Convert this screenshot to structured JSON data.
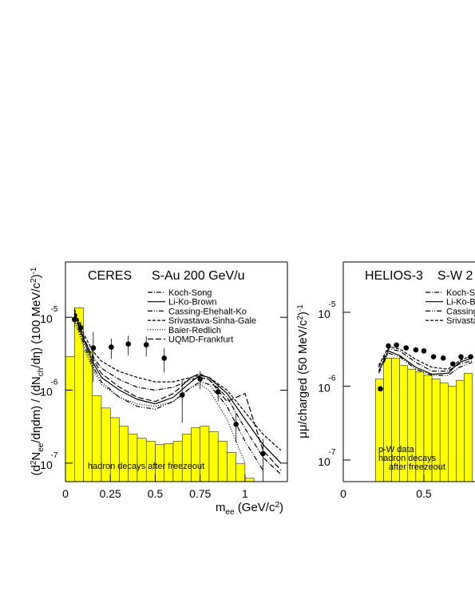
{
  "chart_data": [
    {
      "type": "line",
      "log_y": true,
      "title": "CERES",
      "subtitle": "S-Au 200 GeV/u",
      "xlabel": [
        {
          "text": "m",
          "shift": "normal"
        },
        {
          "text": "ee",
          "shift": "sub"
        },
        {
          "text": " (GeV/c",
          "shift": "normal"
        },
        {
          "text": "2",
          "shift": "sup"
        },
        {
          "text": ")",
          "shift": "normal"
        }
      ],
      "ylabel": [
        {
          "text": "(d",
          "shift": "normal"
        },
        {
          "text": "2",
          "shift": "sup"
        },
        {
          "text": "N",
          "shift": "normal"
        },
        {
          "text": "ee",
          "shift": "sub"
        },
        {
          "text": "/dηdm) / (dN",
          "shift": "normal"
        },
        {
          "text": "ch",
          "shift": "sub"
        },
        {
          "text": "/dη) (100 MeV/c",
          "shift": "normal"
        },
        {
          "text": "2",
          "shift": "sup"
        },
        {
          "text": ")",
          "shift": "normal"
        },
        {
          "text": "-1",
          "shift": "sup"
        }
      ],
      "xlim": [
        0,
        1.236
      ],
      "ylim": [
        5.58e-08,
        5.73e-05
      ],
      "xticks": [
        0,
        0.25,
        0.5,
        0.75,
        1
      ],
      "yticks": [
        {
          "value": 1e-05,
          "label": "10",
          "exponent": "-5"
        },
        {
          "value": 1e-06,
          "label": "10",
          "exponent": "-6"
        },
        {
          "value": 1e-07,
          "label": "10",
          "exponent": "-7"
        }
      ],
      "annotations": [
        "hadron decays after freezeout"
      ],
      "histogram": {
        "color": "#ffff00",
        "bins": [
          0,
          0.05,
          0.1,
          0.15,
          0.2,
          0.25,
          0.3,
          0.35,
          0.4,
          0.45,
          0.5,
          0.55,
          0.6,
          0.65,
          0.7,
          0.75,
          0.8,
          0.85,
          0.9,
          0.95,
          1.0,
          1.05,
          1.1
        ],
        "values": [
          2.9e-06,
          1.35e-05,
          3.4e-06,
          8.4e-07,
          5.7e-07,
          4.2e-07,
          3.2e-07,
          2.5e-07,
          2.2e-07,
          2e-07,
          1.8e-07,
          1.85e-07,
          2e-07,
          2.5e-07,
          3.05e-07,
          3.2e-07,
          2.7e-07,
          2e-07,
          1.4e-07,
          9.8e-08,
          6.2e-08,
          5e-08
        ]
      },
      "points": {
        "color": "#000000",
        "x": [
          0.05,
          0.085,
          0.155,
          0.255,
          0.35,
          0.45,
          0.55,
          0.65,
          0.75,
          0.85,
          0.95,
          1.1
        ],
        "values": [
          9.3e-06,
          7.2e-06,
          3.8e-06,
          3.9e-06,
          4.3e-06,
          4.2e-06,
          2.75e-06,
          8.6e-07,
          1.43e-06,
          9.5e-07,
          3.4e-07,
          1.35e-07
        ],
        "errors": [
          2e-06,
          1.5e-06,
          2.5e-06,
          1.2e-06,
          1.3e-06,
          1.3e-06,
          1e-06,
          5e-07,
          4e-07,
          2.5e-07,
          1.5e-07,
          8e-08
        ]
      },
      "curve_x": [
        0.05,
        0.1,
        0.15,
        0.2,
        0.3,
        0.4,
        0.5,
        0.6,
        0.7,
        0.75,
        0.8,
        0.9,
        1.0,
        1.1,
        1.2
      ],
      "series": [
        {
          "name": "Koch-Song",
          "color": "#000000",
          "dash": "6,2,1,2",
          "values": [
            1.1e-05,
            5e-06,
            3e-06,
            2e-06,
            1.4e-06,
            1.1e-06,
            1e-06,
            1.1e-06,
            1.4e-06,
            1.5e-06,
            1.4e-06,
            8e-07,
            3e-07,
            1.2e-07,
            7e-08
          ]
        },
        {
          "name": "Li-Ko-Brown",
          "color": "#000000",
          "dash": "none",
          "values": [
            1.2e-05,
            5e-06,
            2.5e-06,
            1.5e-06,
            1e-06,
            7.5e-07,
            6.5e-07,
            8e-07,
            1.3e-06,
            1.6e-06,
            1.5e-06,
            9e-07,
            4e-07,
            1.8e-07,
            1e-07
          ]
        },
        {
          "name": "Cassing-Ehehalt-Ko",
          "color": "#000000",
          "dash": "6,2,1,2,1,2",
          "values": [
            1e-05,
            4.5e-06,
            2.2e-06,
            1.3e-06,
            8e-07,
            6e-07,
            5.5e-07,
            7e-07,
            1.1e-06,
            1.3e-06,
            1.2e-06,
            6e-07,
            2e-07,
            8e-08,
            null
          ]
        },
        {
          "name": "Srivastava-Sinha-Gale",
          "color": "#000000",
          "dash": "4,2",
          "values": [
            1.3e-05,
            6e-06,
            3.5e-06,
            2.5e-06,
            1.8e-06,
            1.5e-06,
            1.3e-06,
            1.3e-06,
            1.5e-06,
            1.6e-06,
            1.5e-06,
            1e-06,
            5e-07,
            2.5e-07,
            1.5e-07
          ]
        },
        {
          "name": "Baier-Redlich",
          "color": "#000000",
          "dash": "1,2",
          "values": [
            9e-06,
            4e-06,
            2e-06,
            1.2e-06,
            8e-07,
            6.5e-07,
            6e-07,
            7e-07,
            1.1e-06,
            1.2e-06,
            1e-06,
            4e-07,
            1e-07,
            null,
            null
          ]
        },
        {
          "name": "UQMD-Frankfurt",
          "color": "#000000",
          "dash": "7,3",
          "values": [
            1.2e-05,
            5.5e-06,
            2.8e-06,
            1.7e-06,
            1.1e-06,
            8e-07,
            7e-07,
            9e-07,
            1.5e-06,
            1.7e-06,
            1.4e-06,
            7e-07,
            9e-07,
            1.5e-07,
            8e-08
          ]
        }
      ]
    },
    {
      "type": "line",
      "log_y": true,
      "title": "HELIOS-3",
      "subtitle": "S-W 2",
      "ylabel": [
        {
          "text": "μμ/charged  (50 MeV/c",
          "shift": "normal"
        },
        {
          "text": "2",
          "shift": "sup"
        },
        {
          "text": ")",
          "shift": "normal"
        },
        {
          "text": "-1",
          "shift": "sup"
        }
      ],
      "xlim": [
        0,
        0.817
      ],
      "ylim": [
        5.1e-08,
        4.8e-05
      ],
      "xticks": [
        0,
        0.5
      ],
      "yticks": [
        {
          "value": 1e-05,
          "label": "10",
          "exponent": "-5"
        },
        {
          "value": 1e-06,
          "label": "10",
          "exponent": "-6"
        },
        {
          "value": 1e-07,
          "label": "10",
          "exponent": "-7"
        }
      ],
      "annotations": [
        "p-W data",
        "hadron decays",
        "after freezeout"
      ],
      "histogram": {
        "color": "#ffff00",
        "bins": [
          0.2,
          0.25,
          0.3,
          0.35,
          0.4,
          0.45,
          0.5,
          0.55,
          0.6,
          0.65,
          0.7,
          0.75,
          0.8
        ],
        "values": [
          1.25e-06,
          2.4e-06,
          2.4e-06,
          1.9e-06,
          1.7e-06,
          1.55e-06,
          1.4e-06,
          1.25e-06,
          1.1e-06,
          1e-06,
          1.2e-06,
          1.5e-06
        ]
      },
      "points": {
        "color": "#000000",
        "x": [
          0.23,
          0.28,
          0.33,
          0.39,
          0.45,
          0.5,
          0.56,
          0.62,
          0.68,
          0.73,
          0.79
        ],
        "values": [
          9.2e-07,
          3.5e-06,
          3.6e-06,
          3.3e-06,
          3.1e-06,
          3e-06,
          2.5e-06,
          2.4e-06,
          2e-06,
          2.5e-06,
          2.5e-06
        ]
      },
      "curve_x": [
        0.22,
        0.28,
        0.35,
        0.45,
        0.55,
        0.65,
        0.72,
        0.8
      ],
      "series": [
        {
          "name": "Koch-S",
          "color": "#000000",
          "dash": "6,2,1,2",
          "values": [
            1.8e-06,
            3.2e-06,
            3e-06,
            2.1e-06,
            1.6e-06,
            1.6e-06,
            2e-06,
            2.2e-06
          ]
        },
        {
          "name": "Li-Ko-B",
          "color": "#000000",
          "dash": "none",
          "values": [
            1.6e-06,
            3e-06,
            2.6e-06,
            1.8e-06,
            1.45e-06,
            1.5e-06,
            2.1e-06,
            2.4e-06
          ]
        },
        {
          "name": "Cassing",
          "color": "#000000",
          "dash": "6,2,1,2,1,2",
          "values": [
            1.5e-06,
            2.8e-06,
            2.5e-06,
            1.7e-06,
            1.4e-06,
            1.4e-06,
            1.8e-06,
            2.1e-06
          ]
        },
        {
          "name": "Srivasta",
          "color": "#000000",
          "dash": "4,2",
          "values": [
            1.9e-06,
            3.4e-06,
            3.2e-06,
            2.3e-06,
            1.8e-06,
            1.7e-06,
            2.2e-06,
            2.6e-06
          ]
        }
      ]
    }
  ]
}
